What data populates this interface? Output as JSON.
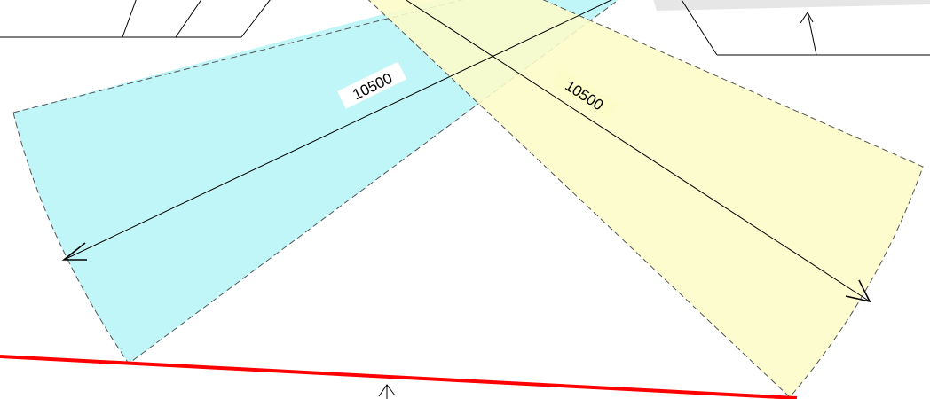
{
  "drawing": {
    "dimensions": [
      {
        "id": "left-sector",
        "value": "10500"
      },
      {
        "id": "right-sector",
        "value": "10500"
      }
    ],
    "colors": {
      "left_sector_fill": "#c0f6f8",
      "right_sector_fill": "#fcfcc8",
      "boundary_line": "#ff0000",
      "linework": "#000000",
      "dash_outline": "#555555"
    }
  }
}
